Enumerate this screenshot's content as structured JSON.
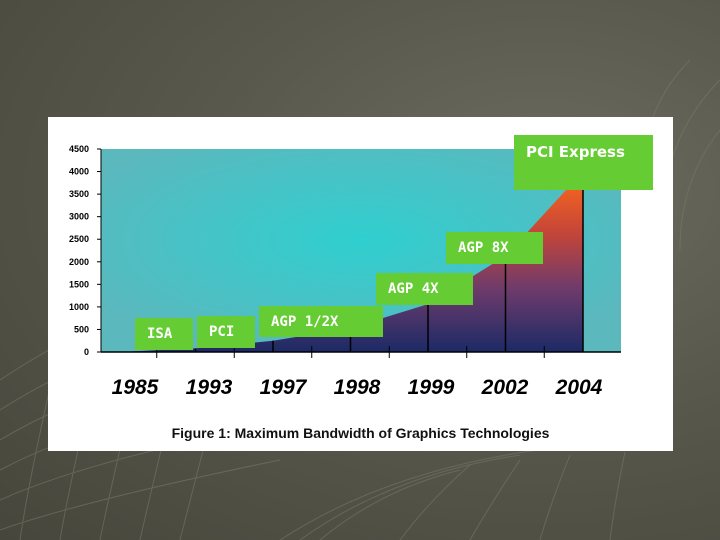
{
  "caption": "Figure 1: Maximum Bandwidth of Graphics Technologies",
  "colors": {
    "plot_background": "#5bb8bd",
    "plot_highlight": "#30cfd0",
    "area_top": "#ff6a1a",
    "area_mid": "#6e3b6b",
    "area_bottom": "#1c2a66",
    "label_background": "#66cc33",
    "label_text": "#ffffff"
  },
  "chart_data": {
    "type": "area",
    "x": [
      "1985",
      "1993",
      "1997",
      "1998",
      "1999",
      "2002",
      "2004"
    ],
    "y": [
      0,
      80,
      250,
      530,
      1060,
      2130,
      4000
    ],
    "yticks": [
      0,
      500,
      1000,
      1500,
      2000,
      2500,
      3000,
      3500,
      4000,
      4500
    ],
    "ylim": [
      0,
      4500
    ],
    "grid": false,
    "annotations": [
      "ISA",
      "PCI",
      "AGP 1/2X",
      "AGP 4X",
      "AGP 8X",
      "PCI Express"
    ]
  }
}
